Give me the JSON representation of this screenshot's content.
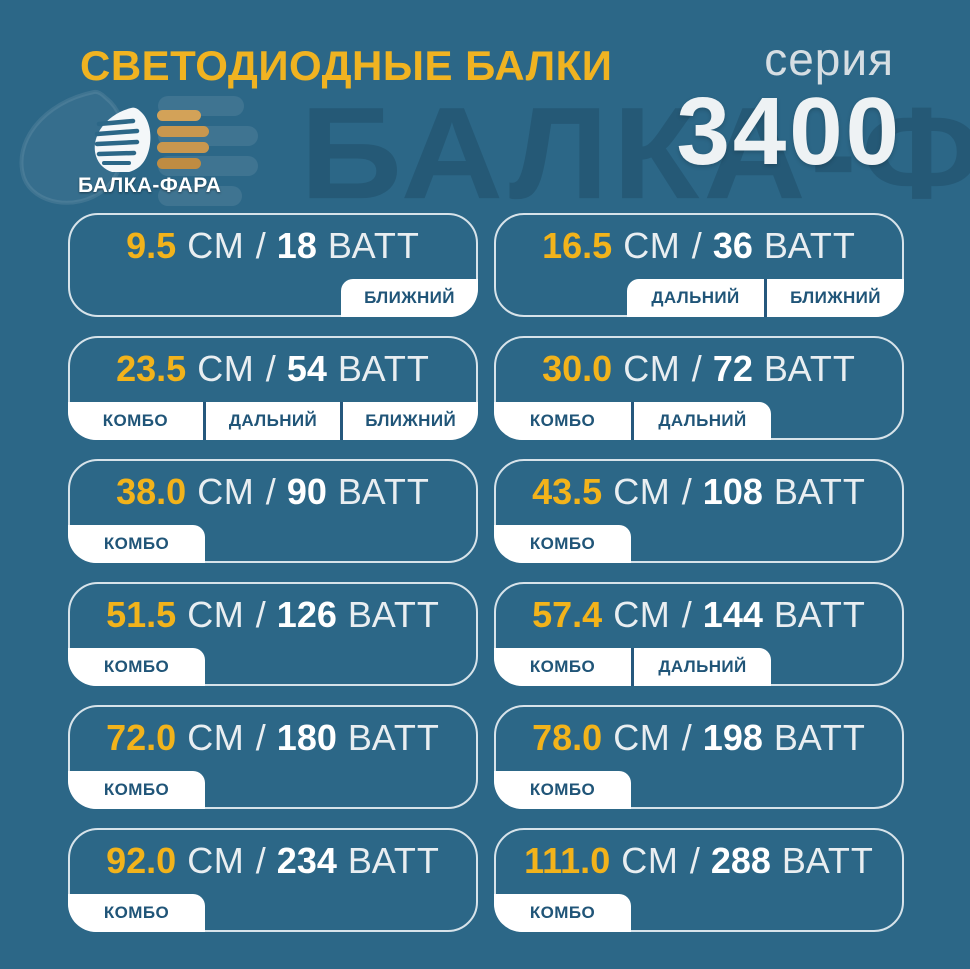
{
  "header": {
    "title": "СВЕТОДИОДНЫЕ БАЛКИ",
    "series_label": "серия",
    "series_number": "3400",
    "brand": "БАЛКА-ФАРА",
    "watermark": "БАЛКА-ФАРА"
  },
  "units": {
    "length": "СМ",
    "separator": "/",
    "power": "ВАТТ"
  },
  "colors": {
    "background": "#2c6787",
    "accent_yellow": "#f2b31b",
    "title_yellow": "#f0b321",
    "tag_text": "#205578",
    "tag_background": "#ffffff",
    "card_border": "#e6eef2",
    "series_number_color": "#eef2f4",
    "gold_bar": "#c9974e"
  },
  "cards": [
    {
      "size": "9.5",
      "watts": "18",
      "tags": [
        "БЛИЖНИЙ"
      ],
      "tags_align": "right"
    },
    {
      "size": "16.5",
      "watts": "36",
      "tags": [
        "ДАЛЬНИЙ",
        "БЛИЖНИЙ"
      ],
      "tags_align": "right"
    },
    {
      "size": "23.5",
      "watts": "54",
      "tags": [
        "КОМБО",
        "ДАЛЬНИЙ",
        "БЛИЖНИЙ"
      ],
      "tags_align": "full"
    },
    {
      "size": "30.0",
      "watts": "72",
      "tags": [
        "КОМБО",
        "ДАЛЬНИЙ"
      ],
      "tags_align": "left"
    },
    {
      "size": "38.0",
      "watts": "90",
      "tags": [
        "КОМБО"
      ],
      "tags_align": "left"
    },
    {
      "size": "43.5",
      "watts": "108",
      "tags": [
        "КОМБО"
      ],
      "tags_align": "left"
    },
    {
      "size": "51.5",
      "watts": "126",
      "tags": [
        "КОМБО"
      ],
      "tags_align": "left"
    },
    {
      "size": "57.4",
      "watts": "144",
      "tags": [
        "КОМБО",
        "ДАЛЬНИЙ"
      ],
      "tags_align": "left"
    },
    {
      "size": "72.0",
      "watts": "180",
      "tags": [
        "КОМБО"
      ],
      "tags_align": "left"
    },
    {
      "size": "78.0",
      "watts": "198",
      "tags": [
        "КОМБО"
      ],
      "tags_align": "left"
    },
    {
      "size": "92.0",
      "watts": "234",
      "tags": [
        "КОМБО"
      ],
      "tags_align": "left"
    },
    {
      "size": "111.0",
      "watts": "288",
      "tags": [
        "КОМБО"
      ],
      "tags_align": "left"
    }
  ]
}
